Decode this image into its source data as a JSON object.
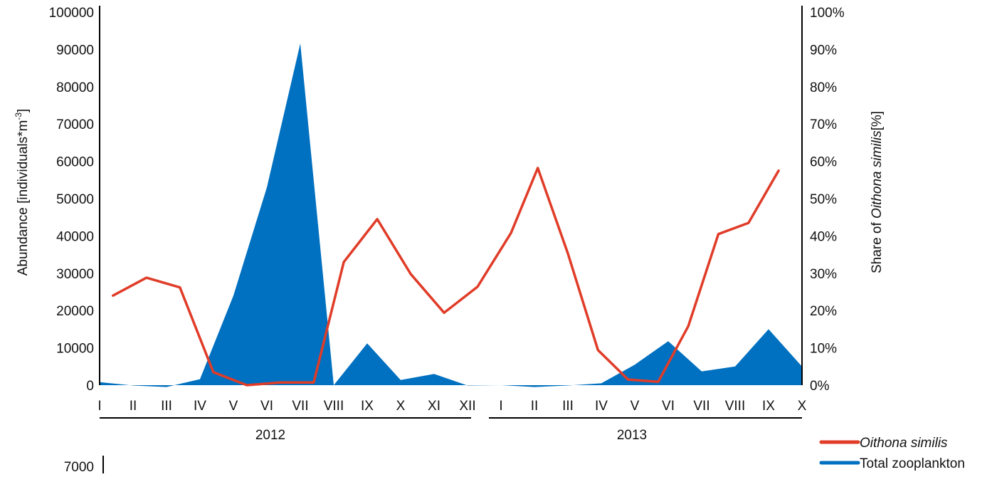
{
  "chart_data": {
    "type": "area",
    "x_categories": [
      "I",
      "II",
      "III",
      "IV",
      "V",
      "VI",
      "VII",
      "VIII",
      "IX",
      "X",
      "XI",
      "XII",
      "I",
      "II",
      "III",
      "IV",
      "V",
      "VI",
      "VII",
      "VIII",
      "IX",
      "X"
    ],
    "year_groups": [
      {
        "label": "2012"
      },
      {
        "label": "2013"
      }
    ],
    "y_left": {
      "ticks": [
        0,
        10000,
        20000,
        30000,
        40000,
        50000,
        60000,
        70000,
        80000,
        90000,
        100000
      ],
      "ylim": [
        0,
        100000
      ],
      "ylabel": "Abundance [individuals*m",
      "ylabel_sup": "-3",
      "ylabel_end": "]"
    },
    "y_right": {
      "ticks": [
        "0%",
        "10%",
        "20%",
        "30%",
        "40%",
        "50%",
        "60%",
        "70%",
        "80%",
        "90%",
        "100%"
      ],
      "ylim": [
        0,
        100
      ],
      "ylabel_prefix": "Share of ",
      "ylabel_italic": "Oithona similis",
      "ylabel_suffix": "[%]"
    },
    "series": [
      {
        "name": "Total zooplankton",
        "kind": "area",
        "axis": "left",
        "color": "#0070c0",
        "points": [
          {
            "x": 0,
            "y": 800
          },
          {
            "x": 1,
            "y": -100
          },
          {
            "x": 2,
            "y": -500
          },
          {
            "x": 3,
            "y": 1600
          },
          {
            "x": 4,
            "y": 24000
          },
          {
            "x": 5,
            "y": 53000
          },
          {
            "x": 6,
            "y": 91600
          },
          {
            "x": 7,
            "y": 0
          },
          {
            "x": 8,
            "y": 11200
          },
          {
            "x": 9,
            "y": 1400
          },
          {
            "x": 10,
            "y": 3000
          },
          {
            "x": 11,
            "y": -100
          },
          {
            "x": 12,
            "y": 0
          },
          {
            "x": 13,
            "y": -500
          },
          {
            "x": 14,
            "y": -100
          },
          {
            "x": 15,
            "y": 500
          },
          {
            "x": 16,
            "y": 5500
          },
          {
            "x": 17,
            "y": 11800
          },
          {
            "x": 18,
            "y": 3700
          },
          {
            "x": 19,
            "y": 5000
          },
          {
            "x": 20,
            "y": 15000
          },
          {
            "x": 21,
            "y": 5000
          }
        ]
      },
      {
        "name": "Oithona similis",
        "kind": "line",
        "axis": "right",
        "color": "#e03c28",
        "points": [
          {
            "x": 0.4,
            "y": 24
          },
          {
            "x": 1.4,
            "y": 28.8
          },
          {
            "x": 2.4,
            "y": 26.2
          },
          {
            "x": 3.4,
            "y": 3.5
          },
          {
            "x": 4.4,
            "y": 0
          },
          {
            "x": 5.4,
            "y": 0.7
          },
          {
            "x": 6.4,
            "y": 0.7
          },
          {
            "x": 7.3,
            "y": 33
          },
          {
            "x": 8.3,
            "y": 44.5
          },
          {
            "x": 9.3,
            "y": 29.8
          },
          {
            "x": 10.3,
            "y": 19.4
          },
          {
            "x": 11.3,
            "y": 26.4
          },
          {
            "x": 12.3,
            "y": 40.8
          },
          {
            "x": 13.1,
            "y": 58.2
          },
          {
            "x": 14.0,
            "y": 35.3
          },
          {
            "x": 14.9,
            "y": 9.4
          },
          {
            "x": 15.8,
            "y": 1.5
          },
          {
            "x": 16.7,
            "y": 0.9
          },
          {
            "x": 17.6,
            "y": 15.8
          },
          {
            "x": 18.5,
            "y": 40.5
          },
          {
            "x": 19.4,
            "y": 43.5
          },
          {
            "x": 20.3,
            "y": 57.5
          }
        ]
      }
    ],
    "legend": [
      {
        "label": "Oithona similis",
        "color": "#e03c28",
        "italic": true
      },
      {
        "label": "Total zooplankton",
        "color": "#0070c0",
        "italic": false
      }
    ],
    "secondary_axis_tick": "7000"
  }
}
